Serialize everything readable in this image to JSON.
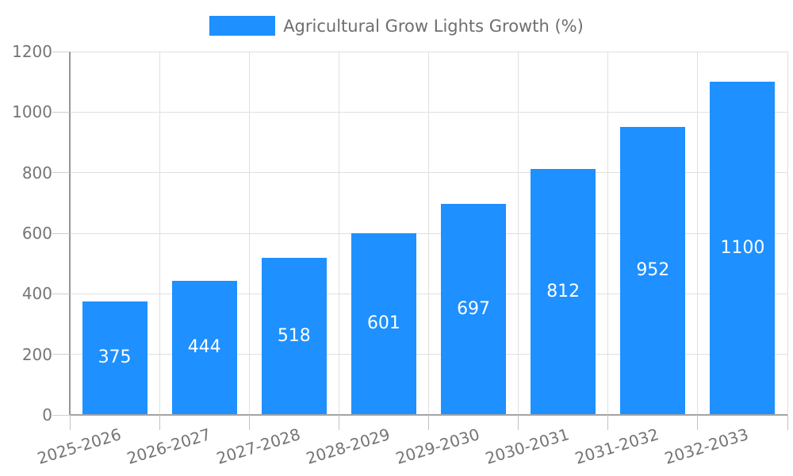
{
  "chart_data": {
    "type": "bar",
    "title": "Agricultural Grow Lights Growth (%)",
    "categories": [
      "2025-2026",
      "2026-2027",
      "2027-2028",
      "2028-2029",
      "2029-2030",
      "2030-2031",
      "2031-2032",
      "2032-2033"
    ],
    "values": [
      375,
      444,
      518,
      601,
      697,
      812,
      952,
      1100
    ],
    "xlabel": "",
    "ylabel": "",
    "ylim": [
      0,
      1200
    ],
    "yticks": [
      0,
      200,
      400,
      600,
      800,
      1000,
      1200
    ],
    "grid": true,
    "legend_position": "top-center",
    "bar_color": "#1E90FF",
    "value_label_color": "#ffffff",
    "tick_label_color": "#757575",
    "legend_text_color": "#6e6e6e",
    "grid_color": "#e0e0e0",
    "axis_color": "#9e9e9e"
  }
}
